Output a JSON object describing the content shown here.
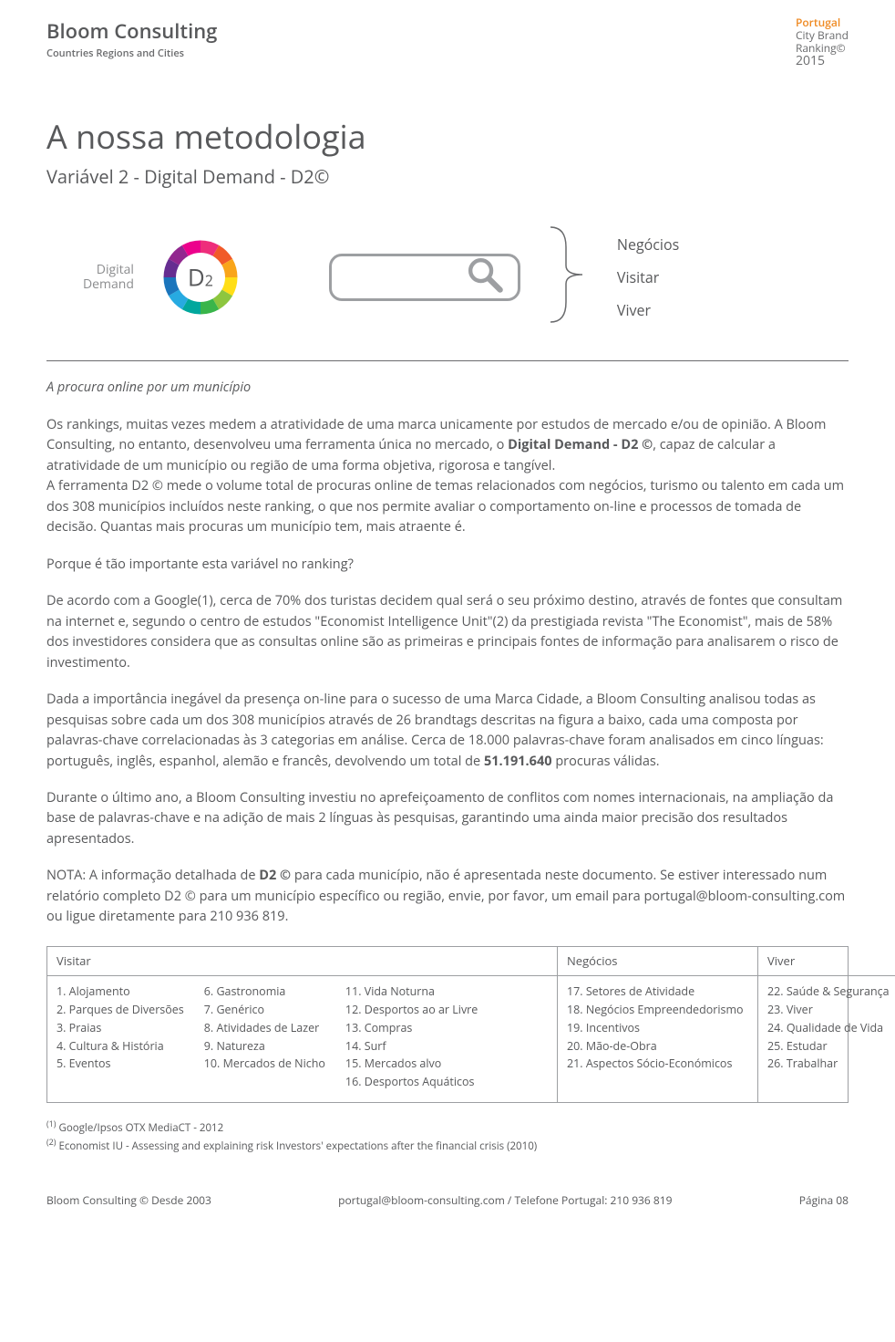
{
  "header": {
    "brand_name": "Bloom Consulting",
    "brand_subtitle": "Countries Regions and Cities",
    "ranking": {
      "country": "Portugal",
      "line1": "City Brand",
      "line2": "Ranking©",
      "year": "2015"
    }
  },
  "title": "A nossa metodologia",
  "subtitle": "Variável 2 - Digital Demand - D2©",
  "diagram": {
    "dd_label_1": "Digital",
    "dd_label_2": "Demand",
    "d2_letter": "D",
    "d2_digit": "2",
    "cat1": "Negócios",
    "cat2": "Visitar",
    "cat3": "Viver",
    "ring_colors": [
      "#ee2e7b",
      "#f15a29",
      "#f9a51a",
      "#ffde17",
      "#8dc63f",
      "#39b54a",
      "#00a79d",
      "#27aae1",
      "#1b75bc",
      "#662d91",
      "#92278f",
      "#ec008c"
    ]
  },
  "content": {
    "lead_italic": "A procura online por um município",
    "p1a": "Os rankings, muitas vezes medem a atratividade de uma marca unicamente por estudos de mercado e/ou de opinião. A Bloom Consulting, no entanto, desenvolveu uma ferramenta única no mercado, o ",
    "p1b_strong": "Digital Demand - D2 ©",
    "p1c": ", capaz de calcular a atratividade de um município ou região de uma forma objetiva, rigorosa e tangível.",
    "p2": "A ferramenta D2 © mede o volume total de procuras online de temas relacionados com negócios, turismo ou talento em cada um dos 308 municípios incluídos neste ranking, o que nos permite avaliar o comportamento on-line e processos de tomada de decisão. Quantas mais procuras um município tem, mais atraente é.",
    "p3": "Porque é tão importante esta variável no ranking?",
    "p4": "De acordo com a Google(1), cerca de 70% dos turistas decidem qual será o seu próximo destino, através de fontes que consultam na internet e, segundo o centro de estudos \"Economist Intelligence Unit\"(2) da prestigiada revista \"The Economist\", mais de 58% dos investidores considera que as consultas online são as primeiras e principais fontes de informação para analisarem o risco de investimento.",
    "p5a": "Dada a importância inegável da presença on-line para o sucesso de uma Marca Cidade, a Bloom Consulting analisou todas as pesquisas sobre cada um dos 308 municípios através de 26 brandtags descritas na figura a baixo, cada uma composta por palavras-chave correlacionadas às 3 categorias em análise. Cerca de 18.000 palavras-chave foram analisados em cinco línguas: português, inglês, espanhol, alemão e francês, devolvendo um total de ",
    "p5b_strong": "51.191.640",
    "p5c": " procuras válidas.",
    "p6": "Durante o último ano, a Bloom Consulting investiu no aprefeiçoamento de conflitos com nomes internacionais, na ampliação da base de palavras-chave e na adição de mais 2 línguas às pesquisas, garantindo uma ainda maior precisão dos resultados apresentados.",
    "p7a": "NOTA: A informação detalhada de ",
    "p7b_strong": "D2 ©",
    "p7c": " para cada município, não é apresentada neste documento. Se estiver interessado num relatório completo D2 © para um município específico ou região, envie, por favor, um email para portugal@bloom-consulting.com ou ligue diretamente para 210 936 819."
  },
  "tags": {
    "visitar": {
      "header": "Visitar",
      "col1": [
        "1.  Alojamento",
        "2.  Parques de Diversões",
        "3.  Praias",
        "4.  Cultura & História",
        "5.  Eventos"
      ],
      "col2": [
        "6.  Gastronomia",
        "7.  Genérico",
        "8.  Atividades de Lazer",
        "9.  Natureza",
        "10. Mercados de Nicho"
      ],
      "col3": [
        "11. Vida Noturna",
        "12. Desportos ao ar Livre",
        "13. Compras",
        "14. Surf",
        "15. Mercados alvo",
        "16. Desportos Aquáticos"
      ]
    },
    "negocios": {
      "header": "Negócios",
      "col1": [
        "17. Setores de Atividade",
        "18. Negócios  Empreendedorismo",
        "19. Incentivos",
        "20. Mão-de-Obra",
        "21. Aspectos Sócio-Económicos"
      ]
    },
    "viver": {
      "header": "Viver",
      "col1": [
        "22. Saúde & Segurança",
        "23. Viver",
        "24. Qualidade de Vida",
        "25. Estudar",
        "26. Trabalhar"
      ]
    }
  },
  "footnotes": {
    "f1": "Google/Ipsos OTX MediaCT - 2012",
    "f2": "Economist IU - Assessing and explaining risk Investors' expectations after the financial crisis (2010)"
  },
  "footer": {
    "left": "Bloom Consulting © Desde 2003",
    "center": "portugal@bloom-consulting.com / Telefone Portugal: 210 936 819",
    "right": "Página 08"
  }
}
